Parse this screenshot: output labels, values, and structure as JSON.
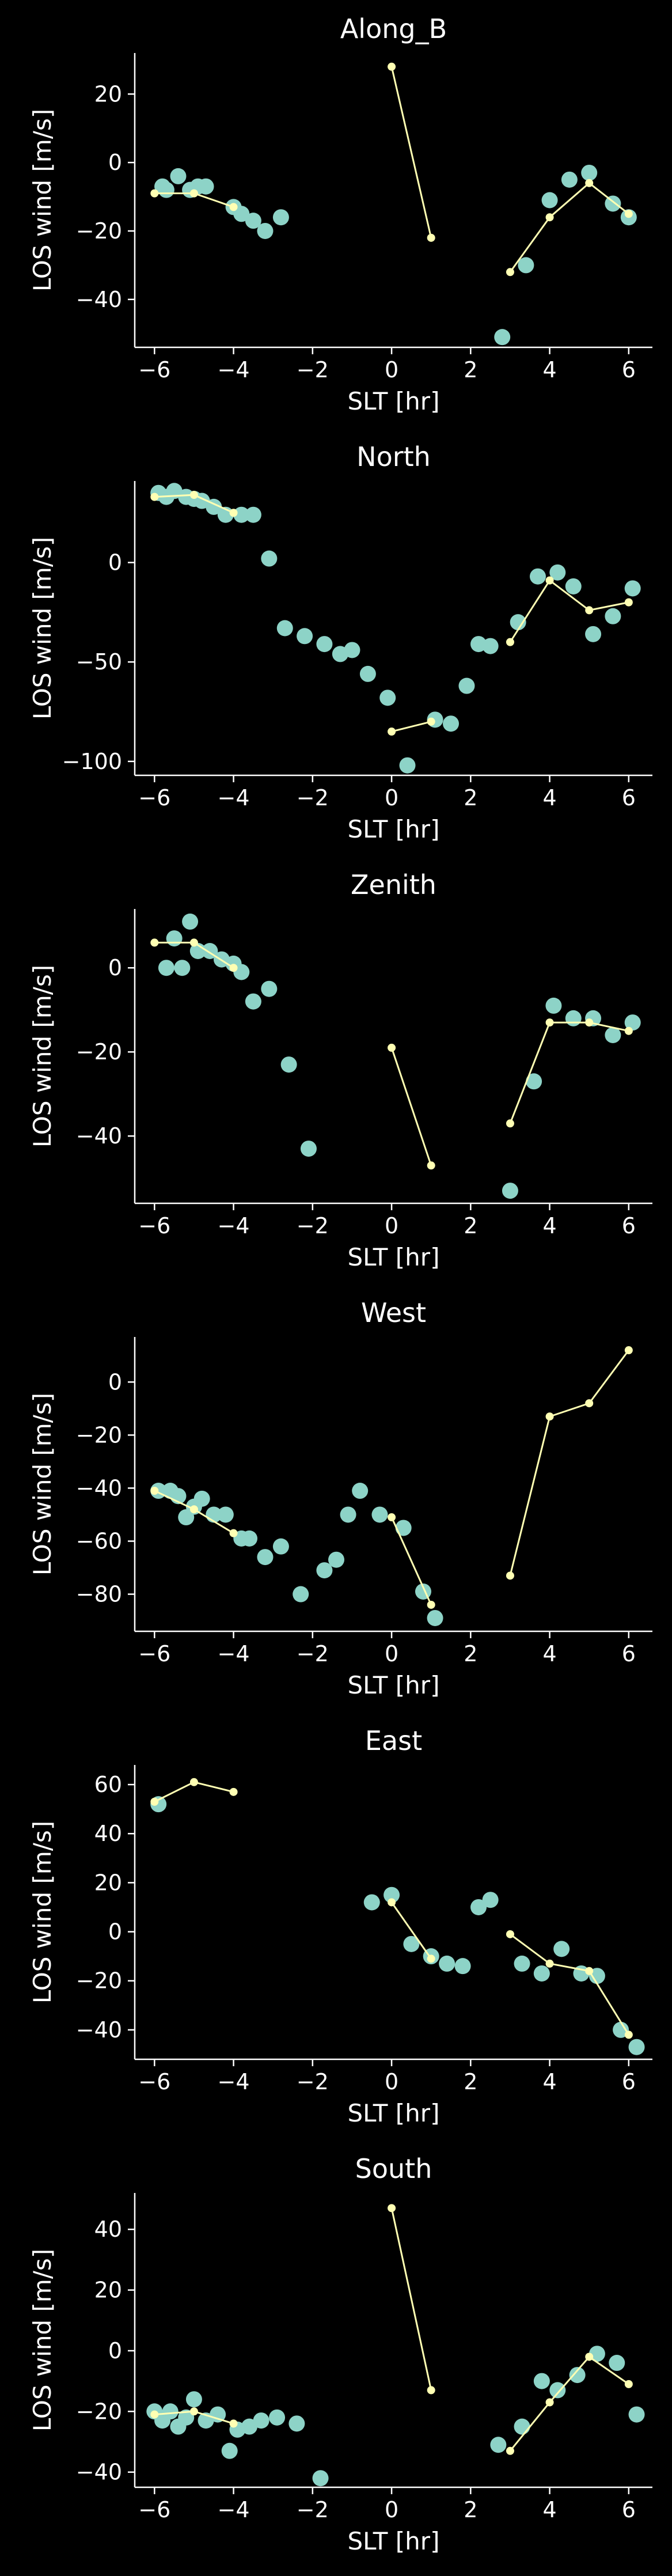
{
  "chart_data": [
    {
      "type": "scatter",
      "title": "Along_B",
      "xlabel": "SLT [hr]",
      "ylabel": "LOS wind [m/s]",
      "xlim": [
        -6.5,
        6.6
      ],
      "ylim": [
        -54,
        32
      ],
      "xticks": [
        -6,
        -4,
        -2,
        0,
        2,
        4,
        6
      ],
      "yticks": [
        -40,
        -20,
        0,
        20
      ],
      "series": [
        {
          "style": "points",
          "color": "#8dd3c7",
          "x": [
            -5.8,
            -5.7,
            -5.4,
            -5.1,
            -4.9,
            -4.7,
            -4.0,
            -3.8,
            -3.5,
            -3.2,
            -2.8,
            2.8,
            3.4,
            4.0,
            4.5,
            5.0,
            5.6,
            6.0
          ],
          "y": [
            -7,
            -8,
            -4,
            -8,
            -7,
            -7,
            -13,
            -15,
            -17,
            -20,
            -16,
            -51,
            -30,
            -11,
            -5,
            -3,
            -12,
            -16
          ]
        },
        {
          "style": "line",
          "color": "#ffffb3",
          "segments": [
            {
              "x": [
                -6,
                -5,
                -4
              ],
              "y": [
                -9,
                -9,
                -13
              ]
            },
            {
              "x": [
                0,
                1
              ],
              "y": [
                28,
                -22
              ]
            },
            {
              "x": [
                3,
                4,
                5,
                6
              ],
              "y": [
                -32,
                -16,
                -6,
                -15
              ]
            }
          ]
        }
      ]
    },
    {
      "type": "scatter",
      "title": "North",
      "xlabel": "SLT [hr]",
      "ylabel": "LOS wind [m/s]",
      "xlim": [
        -6.5,
        6.6
      ],
      "ylim": [
        -107,
        41
      ],
      "xticks": [
        -6,
        -4,
        -2,
        0,
        2,
        4,
        6
      ],
      "yticks": [
        -100,
        -50,
        0
      ],
      "series": [
        {
          "style": "points",
          "color": "#8dd3c7",
          "x": [
            -5.9,
            -5.7,
            -5.5,
            -5.2,
            -5.0,
            -4.8,
            -4.5,
            -4.2,
            -3.8,
            -3.5,
            -3.1,
            -2.7,
            -2.2,
            -1.7,
            -1.3,
            -1.0,
            -0.6,
            -0.1,
            0.4,
            1.1,
            1.5,
            1.9,
            2.2,
            2.5,
            3.2,
            3.7,
            4.2,
            4.6,
            5.1,
            5.6,
            6.1
          ],
          "y": [
            35,
            33,
            36,
            33,
            32,
            31,
            28,
            24,
            24,
            24,
            2,
            -33,
            -37,
            -41,
            -46,
            -44,
            -56,
            -68,
            -102,
            -79,
            -81,
            -62,
            -41,
            -42,
            -30,
            -7,
            -5,
            -12,
            -36,
            -27,
            -13
          ]
        },
        {
          "style": "line",
          "color": "#ffffb3",
          "segments": [
            {
              "x": [
                -6,
                -5,
                -4
              ],
              "y": [
                33,
                34,
                25
              ]
            },
            {
              "x": [
                0,
                1
              ],
              "y": [
                -85,
                -80
              ]
            },
            {
              "x": [
                3,
                4,
                5,
                6
              ],
              "y": [
                -40,
                -9,
                -24,
                -20
              ]
            }
          ]
        }
      ]
    },
    {
      "type": "scatter",
      "title": "Zenith",
      "xlabel": "SLT [hr]",
      "ylabel": "LOS wind [m/s]",
      "xlim": [
        -6.5,
        6.6
      ],
      "ylim": [
        -56,
        14
      ],
      "xticks": [
        -6,
        -4,
        -2,
        0,
        2,
        4,
        6
      ],
      "yticks": [
        -40,
        -20,
        0
      ],
      "series": [
        {
          "style": "points",
          "color": "#8dd3c7",
          "x": [
            -5.7,
            -5.5,
            -5.3,
            -5.1,
            -4.9,
            -4.6,
            -4.3,
            -4.0,
            -3.8,
            -3.5,
            -3.1,
            -2.6,
            -2.1,
            3.0,
            3.6,
            4.1,
            4.6,
            5.1,
            5.6,
            6.1
          ],
          "y": [
            0,
            7,
            0,
            11,
            4,
            4,
            2,
            1,
            -1,
            -8,
            -5,
            -23,
            -43,
            -53,
            -27,
            -9,
            -12,
            -12,
            -16,
            -13
          ]
        },
        {
          "style": "line",
          "color": "#ffffb3",
          "segments": [
            {
              "x": [
                -6,
                -5,
                -4
              ],
              "y": [
                6,
                6,
                0
              ]
            },
            {
              "x": [
                0,
                1
              ],
              "y": [
                -19,
                -47
              ]
            },
            {
              "x": [
                3,
                4,
                5,
                6
              ],
              "y": [
                -37,
                -13,
                -13,
                -15
              ]
            }
          ]
        }
      ]
    },
    {
      "type": "scatter",
      "title": "West",
      "xlabel": "SLT [hr]",
      "ylabel": "LOS wind [m/s]",
      "xlim": [
        -6.5,
        6.6
      ],
      "ylim": [
        -94,
        17
      ],
      "xticks": [
        -6,
        -4,
        -2,
        0,
        2,
        4,
        6
      ],
      "yticks": [
        -80,
        -60,
        -40,
        -20,
        0
      ],
      "series": [
        {
          "style": "points",
          "color": "#8dd3c7",
          "x": [
            -5.9,
            -5.6,
            -5.4,
            -5.2,
            -5.0,
            -4.8,
            -4.5,
            -4.2,
            -3.8,
            -3.6,
            -3.2,
            -2.8,
            -2.3,
            -1.7,
            -1.4,
            -1.1,
            -0.8,
            -0.3,
            0.3,
            0.8,
            1.1
          ],
          "y": [
            -41,
            -41,
            -43,
            -51,
            -47,
            -44,
            -50,
            -50,
            -59,
            -59,
            -66,
            -62,
            -80,
            -71,
            -67,
            -50,
            -41,
            -50,
            -55,
            -79,
            -89
          ]
        },
        {
          "style": "line",
          "color": "#ffffb3",
          "segments": [
            {
              "x": [
                -6,
                -5,
                -4
              ],
              "y": [
                -41,
                -48,
                -57
              ]
            },
            {
              "x": [
                0,
                1
              ],
              "y": [
                -51,
                -84
              ]
            },
            {
              "x": [
                3,
                4,
                5,
                6
              ],
              "y": [
                -73,
                -13,
                -8,
                12
              ]
            }
          ]
        }
      ]
    },
    {
      "type": "scatter",
      "title": "East",
      "xlabel": "SLT [hr]",
      "ylabel": "LOS wind [m/s]",
      "xlim": [
        -6.5,
        6.6
      ],
      "ylim": [
        -52,
        68
      ],
      "xticks": [
        -6,
        -4,
        -2,
        0,
        2,
        4,
        6
      ],
      "yticks": [
        -40,
        -20,
        0,
        20,
        40,
        60
      ],
      "series": [
        {
          "style": "points",
          "color": "#8dd3c7",
          "x": [
            -5.9,
            -0.5,
            0.0,
            0.5,
            1.0,
            1.4,
            1.8,
            2.2,
            2.5,
            3.3,
            3.8,
            4.3,
            4.8,
            5.2,
            5.8,
            6.2
          ],
          "y": [
            52,
            12,
            15,
            -5,
            -10,
            -13,
            -14,
            10,
            13,
            -13,
            -17,
            -7,
            -17,
            -18,
            -40,
            -47
          ]
        },
        {
          "style": "line",
          "color": "#ffffb3",
          "segments": [
            {
              "x": [
                -6,
                -5,
                -4
              ],
              "y": [
                53,
                61,
                57
              ]
            },
            {
              "x": [
                0,
                1
              ],
              "y": [
                12,
                -11
              ]
            },
            {
              "x": [
                3,
                4,
                5,
                6
              ],
              "y": [
                -1,
                -13,
                -16,
                -42
              ]
            }
          ]
        }
      ]
    },
    {
      "type": "scatter",
      "title": "South",
      "xlabel": "SLT [hr]",
      "ylabel": "LOS wind [m/s]",
      "xlim": [
        -6.5,
        6.6
      ],
      "ylim": [
        -45,
        52
      ],
      "xticks": [
        -6,
        -4,
        -2,
        0,
        2,
        4,
        6
      ],
      "yticks": [
        -40,
        -20,
        0,
        20,
        40
      ],
      "series": [
        {
          "style": "points",
          "color": "#8dd3c7",
          "x": [
            -6.0,
            -5.8,
            -5.6,
            -5.4,
            -5.2,
            -5.0,
            -4.7,
            -4.4,
            -4.1,
            -3.9,
            -3.6,
            -3.3,
            -2.9,
            -2.4,
            -1.8,
            2.7,
            3.3,
            3.8,
            4.2,
            4.7,
            5.2,
            5.7,
            6.2
          ],
          "y": [
            -20,
            -23,
            -20,
            -25,
            -22,
            -16,
            -23,
            -21,
            -33,
            -26,
            -25,
            -23,
            -22,
            -24,
            -42,
            -31,
            -25,
            -10,
            -13,
            -8,
            -1,
            -4,
            -21
          ]
        },
        {
          "style": "line",
          "color": "#ffffb3",
          "segments": [
            {
              "x": [
                -6,
                -5,
                -4
              ],
              "y": [
                -21,
                -20,
                -24
              ]
            },
            {
              "x": [
                0,
                1
              ],
              "y": [
                47,
                -13
              ]
            },
            {
              "x": [
                3,
                4,
                5,
                6
              ],
              "y": [
                -33,
                -17,
                -2,
                -11
              ]
            }
          ]
        }
      ]
    }
  ]
}
